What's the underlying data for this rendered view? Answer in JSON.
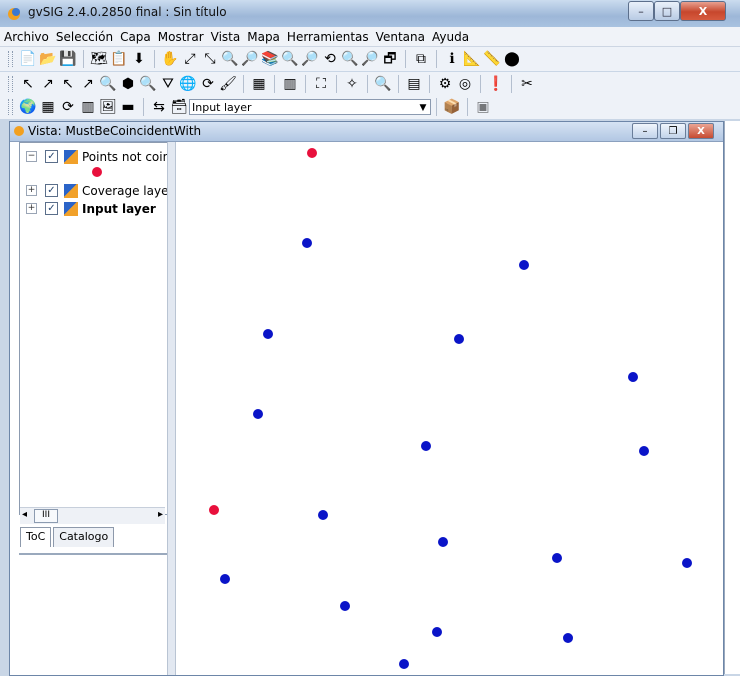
{
  "app": {
    "title": "gvSIG 2.4.0.2850 final : Sin título",
    "window_buttons": [
      "–",
      "□",
      "X"
    ]
  },
  "menu": [
    "Archivo",
    "Selección",
    "Capa",
    "Mostrar",
    "Vista",
    "Mapa",
    "Herramientas",
    "Ventana",
    "Ayuda"
  ],
  "toolbar": {
    "row1": [
      "📄",
      "📂",
      "💾",
      "🗺",
      "📋",
      "⬇",
      "✋",
      "⤢",
      "⤡",
      "🔍",
      "🔎",
      "📚",
      "🔍",
      "🔎",
      "⟲",
      "🔍",
      "🔎",
      "🗗",
      "⧉",
      "ℹ",
      "📐",
      "📏",
      "⬤"
    ],
    "row2": [
      "↖",
      "↗",
      "↖",
      "↗",
      "🔍",
      "⬢",
      "🔍",
      "⛛",
      "🌐",
      "⟳",
      "🖌",
      "▦",
      "▥",
      "⛶",
      "✧",
      "🔍",
      "▤",
      "⚙",
      "◎",
      "❗",
      "✂"
    ],
    "row3": [
      "🌍",
      "▦",
      "⟳",
      "▥",
      "🖼",
      "▬",
      "⇆",
      "🗃",
      "📦"
    ],
    "layer_select": "Input layer"
  },
  "view": {
    "title": "Vista: MustBeCoincidentWith",
    "buttons": [
      "–",
      "❐",
      "X"
    ]
  },
  "toc": {
    "layers": [
      {
        "name": "Points not coincid",
        "checked": true,
        "expanded": true,
        "bold": false,
        "legend_color": "#e8103c"
      },
      {
        "name": "Coverage layer",
        "checked": true,
        "expanded": false,
        "bold": false
      },
      {
        "name": "Input layer",
        "checked": true,
        "expanded": false,
        "bold": true
      }
    ],
    "tabs": [
      "ToC",
      "Catalogo"
    ],
    "scroll_label": "III"
  },
  "colors": {
    "red_point": "#e8103c",
    "blue_point": "#0a14c8"
  },
  "map_points": {
    "red": [
      [
        0.25,
        0.02
      ],
      [
        0.07,
        0.69
      ]
    ],
    "blue": [
      [
        0.24,
        0.19
      ],
      [
        0.64,
        0.23
      ],
      [
        0.17,
        0.36
      ],
      [
        0.52,
        0.37
      ],
      [
        0.84,
        0.44
      ],
      [
        0.15,
        0.51
      ],
      [
        0.46,
        0.57
      ],
      [
        0.86,
        0.58
      ],
      [
        0.27,
        0.7
      ],
      [
        0.49,
        0.75
      ],
      [
        0.7,
        0.78
      ],
      [
        0.94,
        0.79
      ],
      [
        0.09,
        0.82
      ],
      [
        0.31,
        0.87
      ],
      [
        0.48,
        0.92
      ],
      [
        0.72,
        0.93
      ],
      [
        0.42,
        0.98
      ]
    ]
  }
}
